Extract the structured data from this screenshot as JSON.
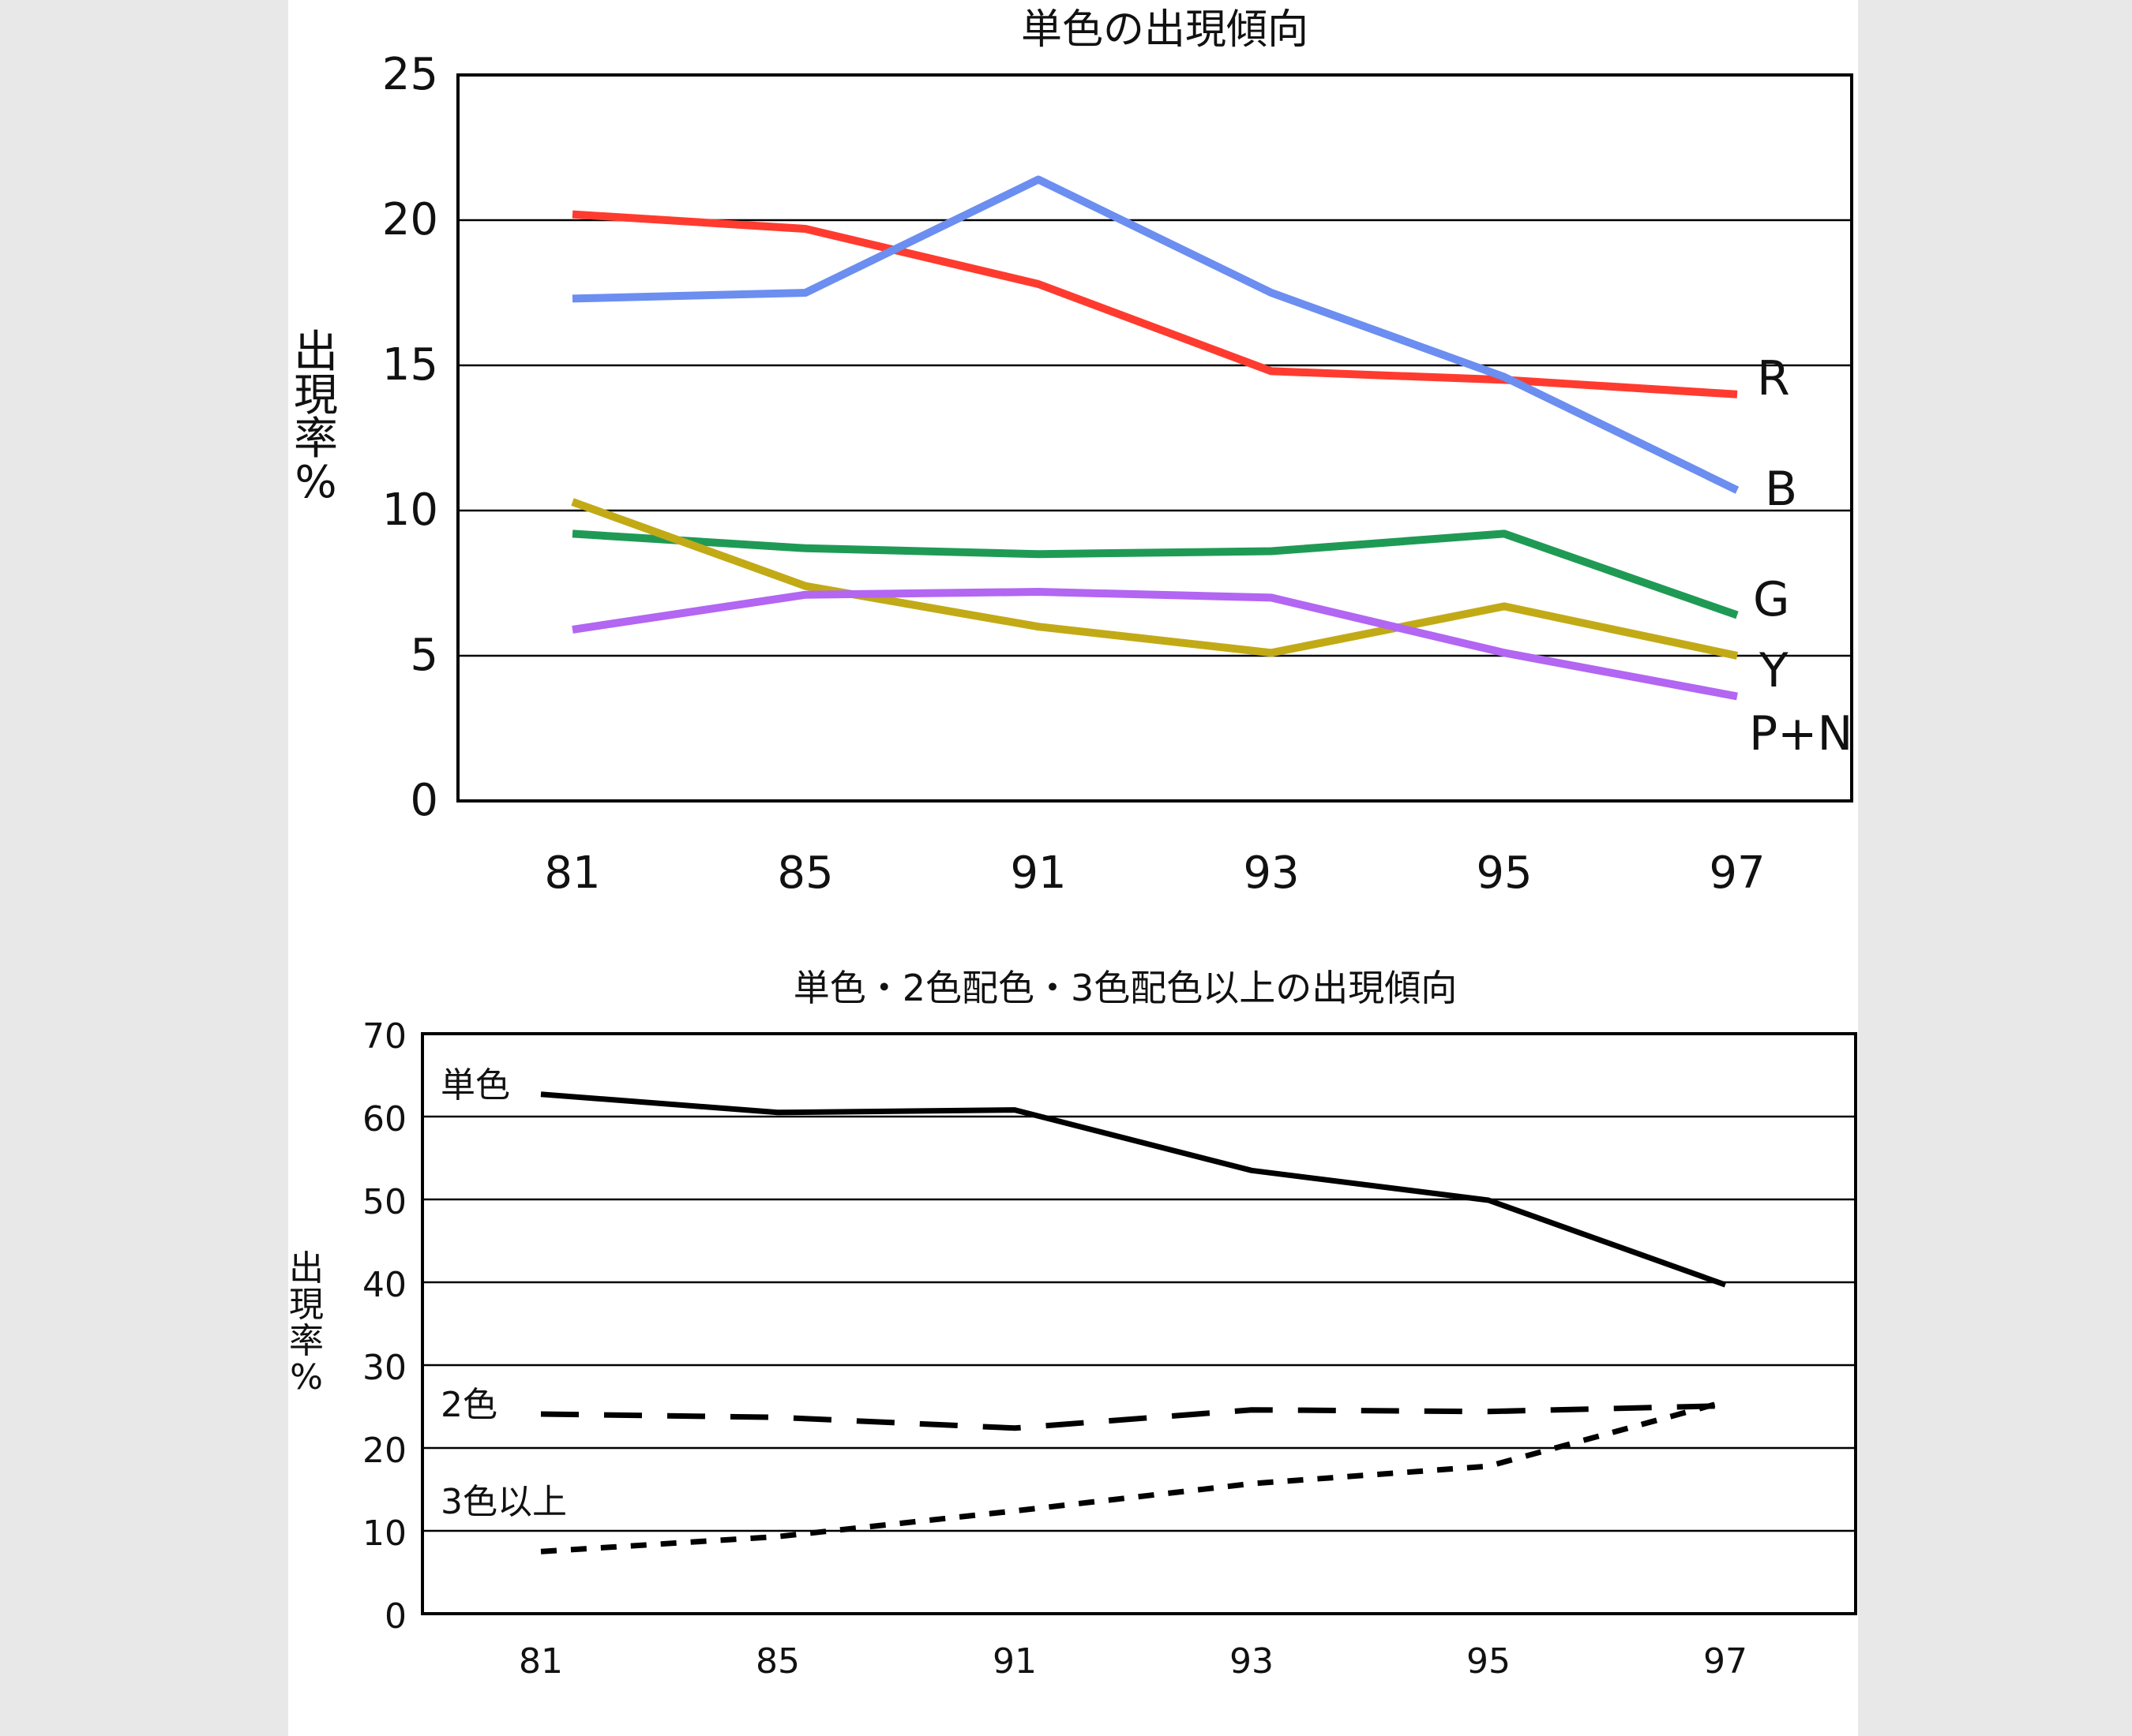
{
  "chart_data": [
    {
      "type": "line",
      "title": "単色の出現傾向",
      "ylabel": "出現率%",
      "xlabel": "",
      "categories": [
        "81",
        "85",
        "91",
        "93",
        "95",
        "97"
      ],
      "ylim": [
        0,
        25
      ],
      "yticks": [
        0,
        5,
        10,
        15,
        20,
        25
      ],
      "grid": true,
      "legend": "inline-right",
      "series": [
        {
          "name": "R",
          "color": "#ff3b2f",
          "values": [
            20.2,
            19.7,
            17.8,
            14.8,
            14.5,
            14.0
          ]
        },
        {
          "name": "B",
          "color": "#6b8ef0",
          "values": [
            17.3,
            17.5,
            21.4,
            17.5,
            14.6,
            10.7
          ]
        },
        {
          "name": "G",
          "color": "#1f9a55",
          "values": [
            9.2,
            8.7,
            8.5,
            8.6,
            9.2,
            6.4
          ]
        },
        {
          "name": "Y",
          "color": "#c2aa17",
          "values": [
            10.3,
            7.4,
            6.0,
            5.1,
            6.7,
            5.0
          ]
        },
        {
          "name": "P+N",
          "color": "#b266f2",
          "values": [
            5.9,
            7.1,
            7.2,
            7.0,
            5.1,
            3.6
          ]
        }
      ]
    },
    {
      "type": "line",
      "title": "単色・2色配色・3色配色以上の出現傾向",
      "ylabel": "出現率%",
      "xlabel": "",
      "categories": [
        "81",
        "85",
        "91",
        "93",
        "95",
        "97"
      ],
      "ylim": [
        0,
        70
      ],
      "yticks": [
        0,
        10,
        20,
        30,
        40,
        50,
        60,
        70
      ],
      "grid": true,
      "legend": "inline-left",
      "series": [
        {
          "name": "単色",
          "color": "#000000",
          "dash": "solid",
          "values": [
            62.7,
            60.5,
            60.8,
            53.5,
            49.9,
            39.7
          ]
        },
        {
          "name": "2色",
          "color": "#000000",
          "dash": "long",
          "values": [
            24.1,
            23.7,
            22.4,
            24.6,
            24.4,
            25.1
          ]
        },
        {
          "name": "3色以上",
          "color": "#000000",
          "dash": "short",
          "values": [
            7.5,
            9.3,
            12.4,
            15.7,
            17.8,
            25.6
          ]
        }
      ]
    }
  ]
}
